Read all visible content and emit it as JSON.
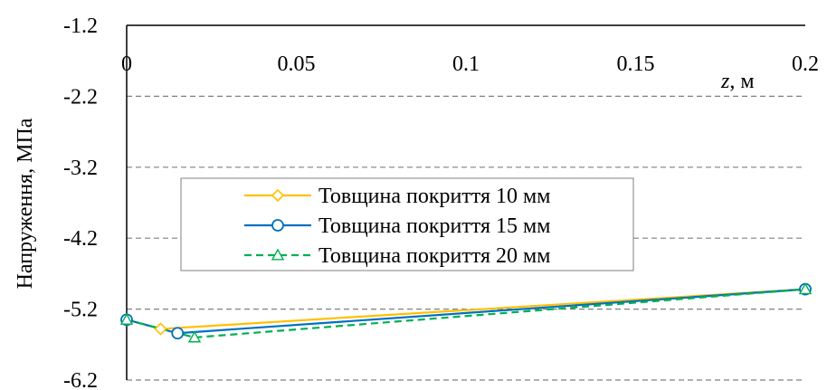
{
  "chart_data": {
    "type": "line",
    "title": "",
    "xlabel": {
      "var": "z",
      "unit": ", м"
    },
    "ylabel": "Напруження, МПа",
    "xlim": [
      0,
      0.2
    ],
    "ylim": [
      -6.2,
      -1.2
    ],
    "xticks": [
      0,
      0.05,
      0.1,
      0.15,
      0.2
    ],
    "xtick_labels": [
      "0",
      "0.05",
      "0.1",
      "0.15",
      "0.2"
    ],
    "yticks": [
      -1.2,
      -2.2,
      -3.2,
      -4.2,
      -5.2,
      -6.2
    ],
    "ytick_labels": [
      "-1.2",
      "-2.2",
      "-3.2",
      "-4.2",
      "-5.2",
      "-6.2"
    ],
    "x_axis_position": "top",
    "grid": {
      "horizontal": true,
      "style": "dashed"
    },
    "legend_position": "center-left",
    "series": [
      {
        "name": "Товщина покриття 10 мм",
        "color": "#FFC000",
        "marker": "diamond",
        "dash": "solid",
        "x": [
          0,
          0.01,
          0.2
        ],
        "y": [
          -5.35,
          -5.48,
          -4.92
        ]
      },
      {
        "name": "Товщина покриття 15 мм",
        "color": "#0070C0",
        "marker": "circle",
        "dash": "solid",
        "x": [
          0,
          0.015,
          0.2
        ],
        "y": [
          -5.35,
          -5.54,
          -4.92
        ]
      },
      {
        "name": "Товщина покриття 20 мм",
        "color": "#00B050",
        "marker": "triangle",
        "dash": "dashed",
        "x": [
          0,
          0.02,
          0.2
        ],
        "y": [
          -5.35,
          -5.6,
          -4.92
        ]
      }
    ]
  }
}
